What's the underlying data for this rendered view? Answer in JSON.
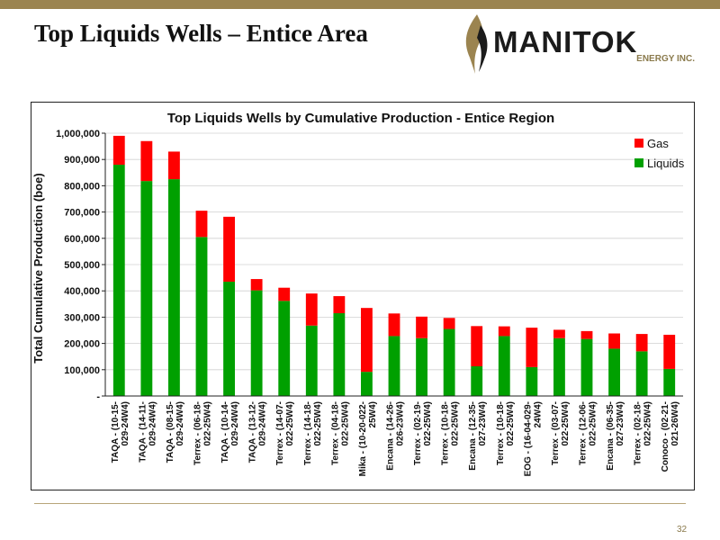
{
  "slide": {
    "title": "Top Liquids Wells – Entice Area",
    "page_number": "32"
  },
  "logo": {
    "wordmark": "MANITOK",
    "subtitle": "ENERGY INC."
  },
  "colors": {
    "gas": "#ff0000",
    "liquids": "#00a000",
    "top_bar": "#9b8450"
  },
  "chart_data": {
    "type": "bar",
    "stacked": true,
    "title": "Top Liquids Wells by Cumulative Production - Entice Region",
    "ylabel": "Total Cumulative Production (boe)",
    "xlabel": "",
    "ylim": [
      0,
      1000000
    ],
    "yticks": [
      0,
      100000,
      200000,
      300000,
      400000,
      500000,
      600000,
      700000,
      800000,
      900000,
      1000000
    ],
    "ytick_labels": [
      "-",
      "100,000",
      "200,000",
      "300,000",
      "400,000",
      "500,000",
      "600,000",
      "700,000",
      "800,000",
      "900,000",
      "1,000,000"
    ],
    "legend_position": "top-right",
    "categories": [
      [
        "TAQA - (10-15-",
        "029-24W4)"
      ],
      [
        "TAQA - (14-11-",
        "029-24W4)"
      ],
      [
        "TAQA - (08-15-",
        "029-24W4)"
      ],
      [
        "Terrex - (06-18-",
        "022-25W4)"
      ],
      [
        "TAQA - (10-14-",
        "029-24W4)"
      ],
      [
        "TAQA - (13-12-",
        "029-24W4)"
      ],
      [
        "Terrex - (14-07-",
        "022-25W4)"
      ],
      [
        "Terrex - (14-18-",
        "022-25W4)"
      ],
      [
        "Terrex - (04-18-",
        "022-25W4)"
      ],
      [
        "Mika - (10-20-022-",
        "25W4)"
      ],
      [
        "Encana - (14-26-",
        "026-23W4)"
      ],
      [
        "Terrex - (02-19-",
        "022-25W4)"
      ],
      [
        "Terrex - (10-18-",
        "022-25W4)"
      ],
      [
        "Encana - (12-35-",
        "027-23W4)"
      ],
      [
        "Terrex - (10-18-",
        "022-25W4)"
      ],
      [
        "EOG - (16-04-029-",
        "24W4)"
      ],
      [
        "Terrex - (03-07-",
        "022-25W4)"
      ],
      [
        "Terrex - (12-06-",
        "022-25W4)"
      ],
      [
        "Encana - (06-35-",
        "027-23W4)"
      ],
      [
        "Terrex - (02-18-",
        "022-25W4)"
      ],
      [
        "Conoco - (02-21-",
        "021-26W4)"
      ]
    ],
    "series": [
      {
        "name": "Liquids",
        "values": [
          880000,
          818000,
          825000,
          605000,
          435000,
          402000,
          362000,
          268000,
          315000,
          92000,
          228000,
          220000,
          255000,
          113000,
          228000,
          110000,
          220000,
          217000,
          180000,
          170000,
          103000
        ]
      },
      {
        "name": "Gas",
        "values": [
          110000,
          152000,
          105000,
          100000,
          247000,
          43000,
          50000,
          122000,
          65000,
          243000,
          86000,
          82000,
          42000,
          153000,
          37000,
          150000,
          32000,
          30000,
          58000,
          66000,
          130000
        ]
      }
    ]
  }
}
